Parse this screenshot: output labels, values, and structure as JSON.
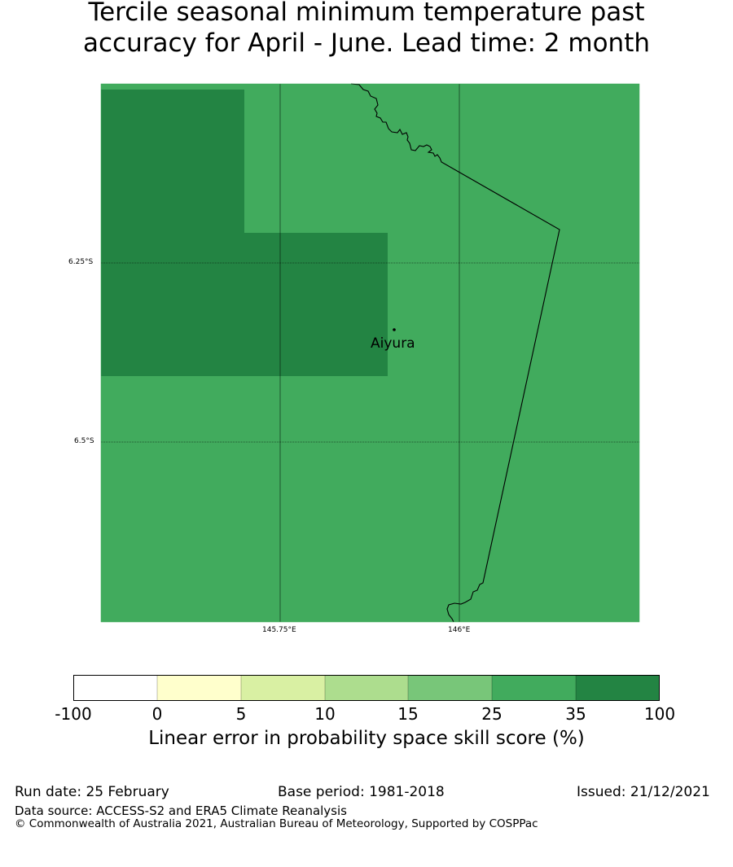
{
  "title": {
    "line1": "Tercile seasonal minimum temperature past",
    "line2": "accuracy for April - June. Lead time: 2 month"
  },
  "map": {
    "lat_ticks": [
      "6.25°S",
      "6.5°S"
    ],
    "lon_ticks": [
      "145.75°E",
      "146°E"
    ],
    "city": {
      "name": "Aiyura"
    },
    "colors": {
      "base": "#41ab5d",
      "dark": "#238443"
    }
  },
  "colorbar": {
    "ticks": [
      "-100",
      "0",
      "5",
      "10",
      "15",
      "25",
      "35",
      "100"
    ],
    "colors": [
      "#ffffff",
      "#ffffcc",
      "#d9f0a3",
      "#addd8e",
      "#78c679",
      "#41ab5d",
      "#238443"
    ],
    "label": "Linear error in probability space skill score (%)"
  },
  "footer": {
    "run_date": "Run date: 25 February",
    "base_period": "Base period: 1981-2018",
    "issued": "Issued: 21/12/2021",
    "data_source": "Data source: ACCESS-S2 and ERA5 Climate Reanalysis",
    "copyright": "© Commonwealth of Australia 2021, Australian Bureau of Meteorology, Supported by COSPPac"
  }
}
